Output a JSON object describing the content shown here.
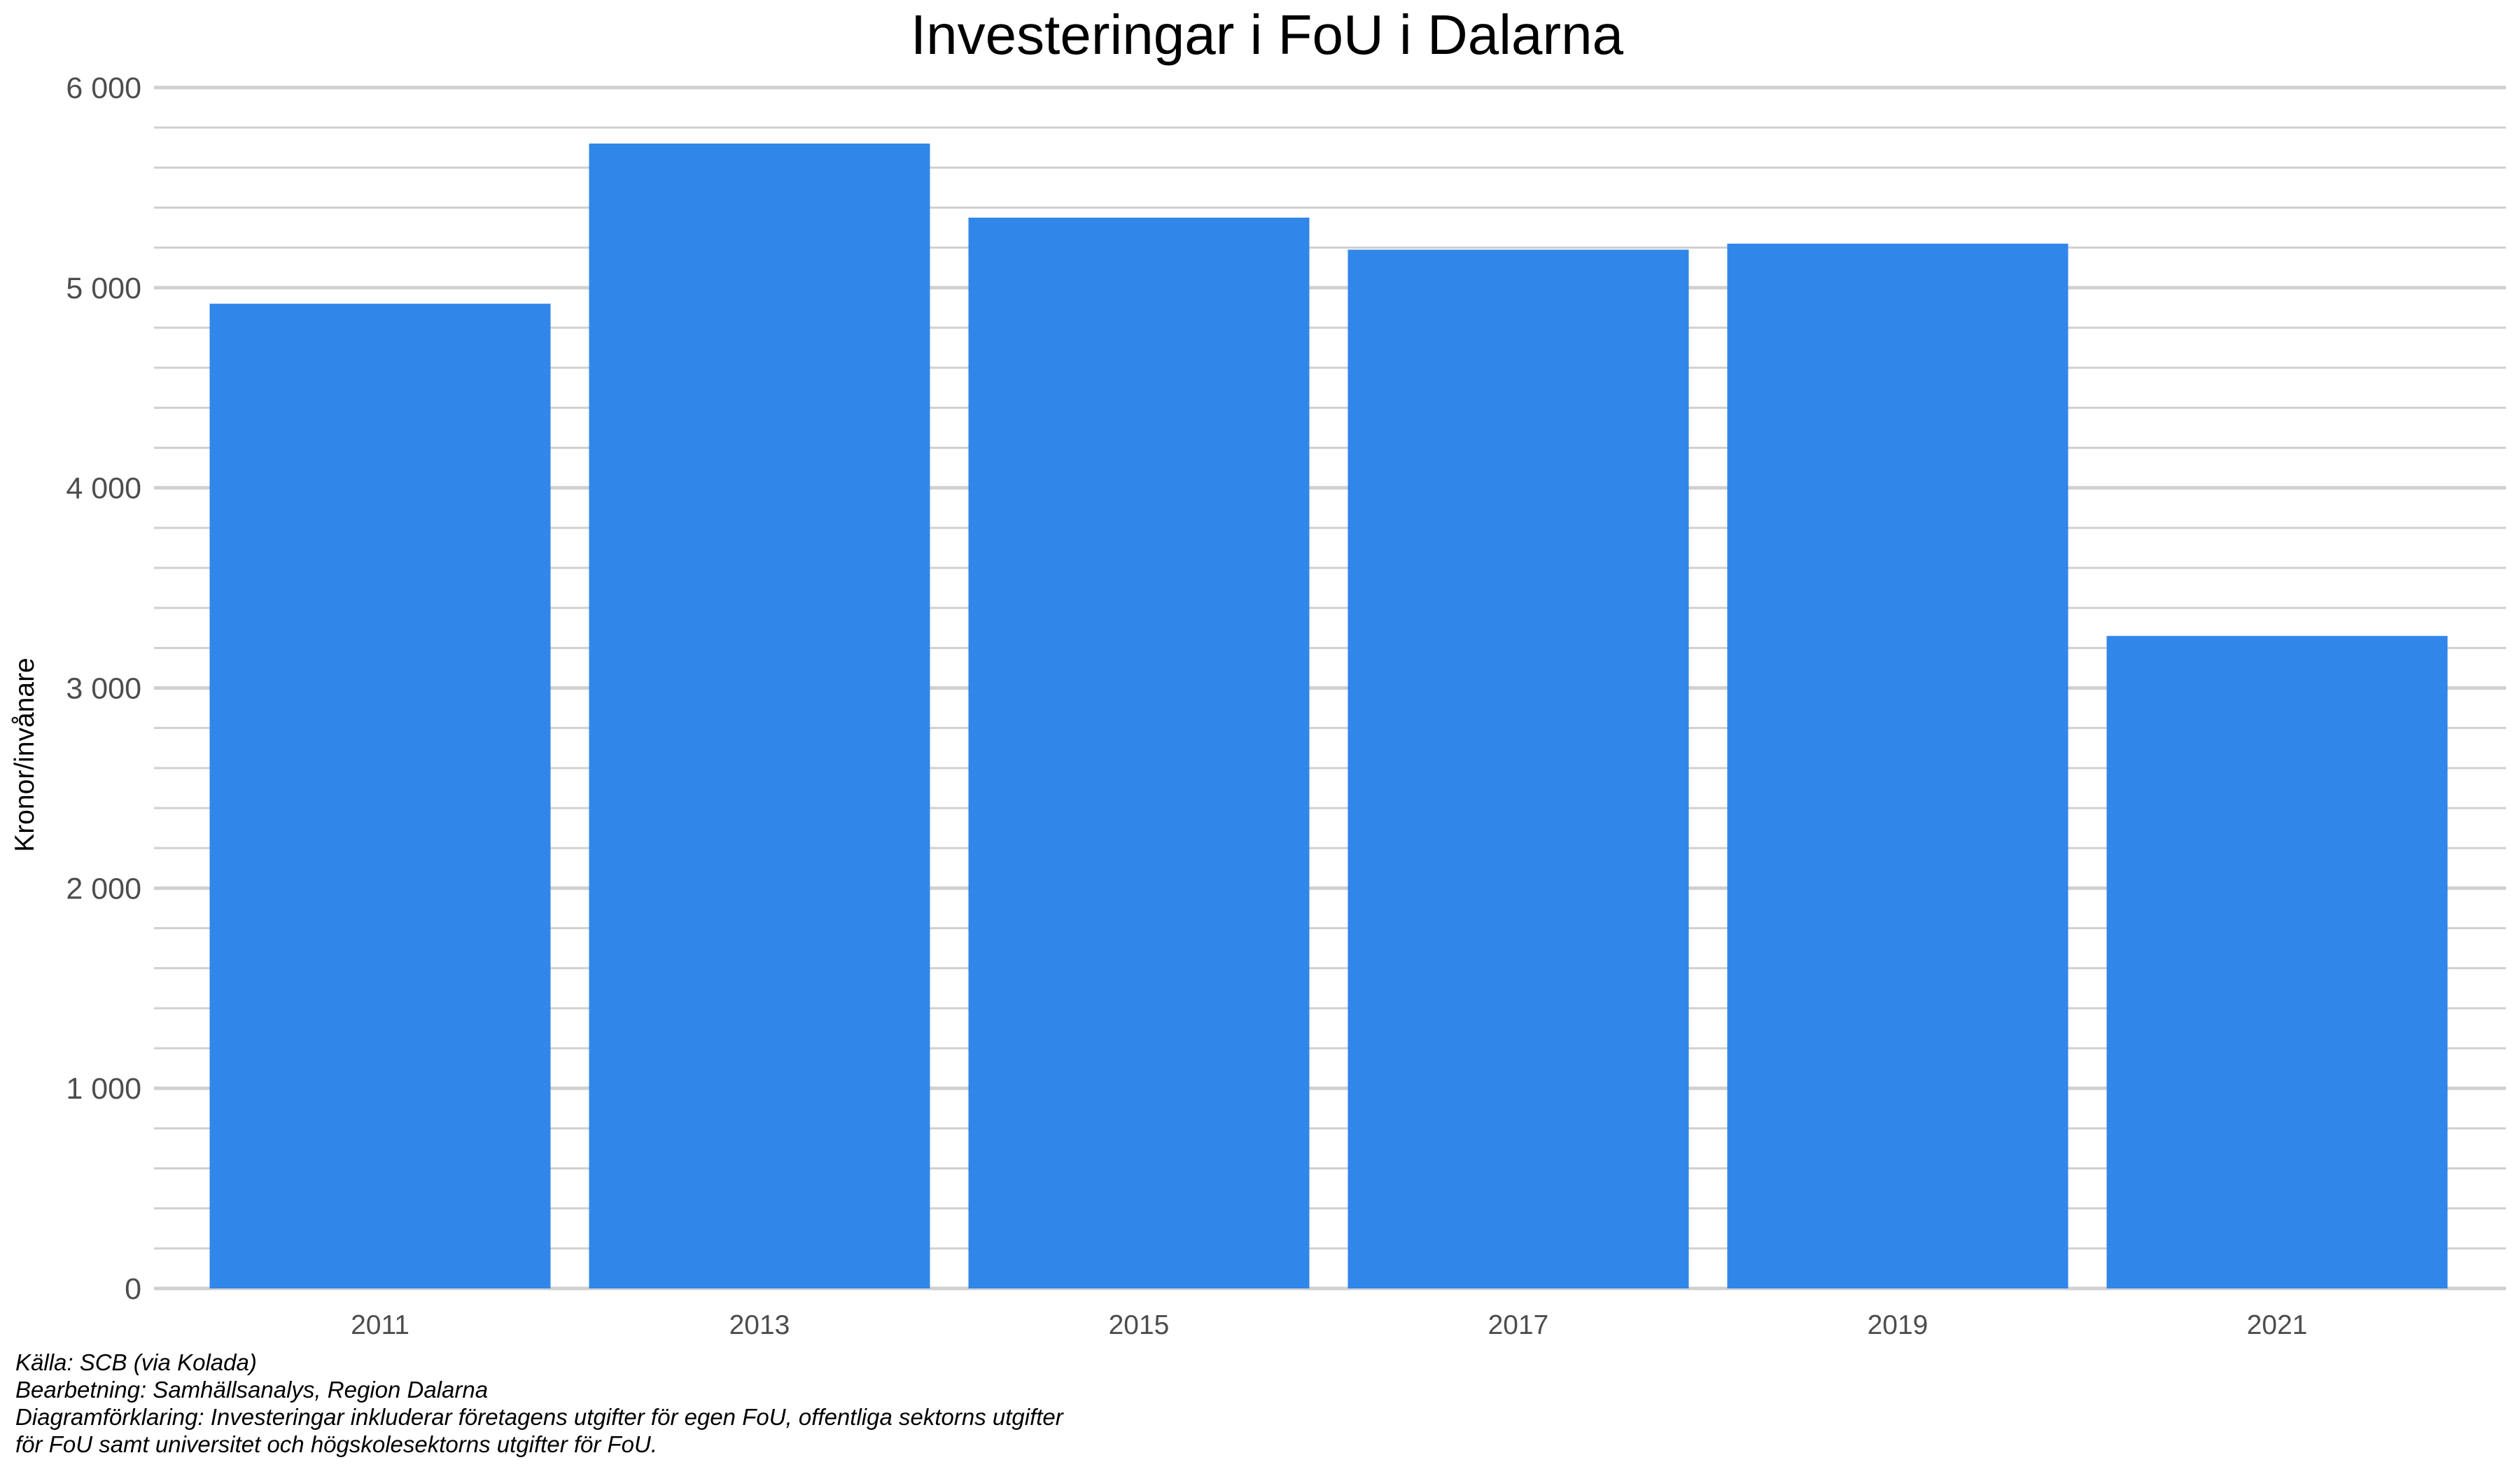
{
  "chart_data": {
    "type": "bar",
    "title": "Investeringar i FoU i Dalarna",
    "xlabel": "",
    "ylabel": "Kronor/invånare",
    "categories": [
      "2011",
      "2013",
      "2015",
      "2017",
      "2019",
      "2021"
    ],
    "series": [
      {
        "values": [
          4920,
          5720,
          5350,
          5190,
          5220,
          3260
        ]
      }
    ],
    "ylim": [
      0,
      6000
    ],
    "yticks": [
      0,
      1000,
      2000,
      3000,
      4000,
      5000,
      6000
    ],
    "ytick_labels": [
      "0",
      "1 000",
      "2 000",
      "3 000",
      "4 000",
      "5 000",
      "6 000"
    ],
    "minor_grid_step": 200,
    "grid": true,
    "legend": "none",
    "bar_color": "#3186E9",
    "grid_color": "#D0D0D0",
    "tick_label_color": "#4D4D4D"
  },
  "caption": {
    "source": "Källa: SCB (via Kolada)",
    "processing": "Bearbetning: Samhällsanalys, Region Dalarna",
    "explanation_line1": "Diagramförklaring: Investeringar inkluderar företagens utgifter för egen FoU, offentliga sektorns utgifter",
    "explanation_line2": "för FoU samt universitet och högskolesektorns utgifter för FoU."
  }
}
